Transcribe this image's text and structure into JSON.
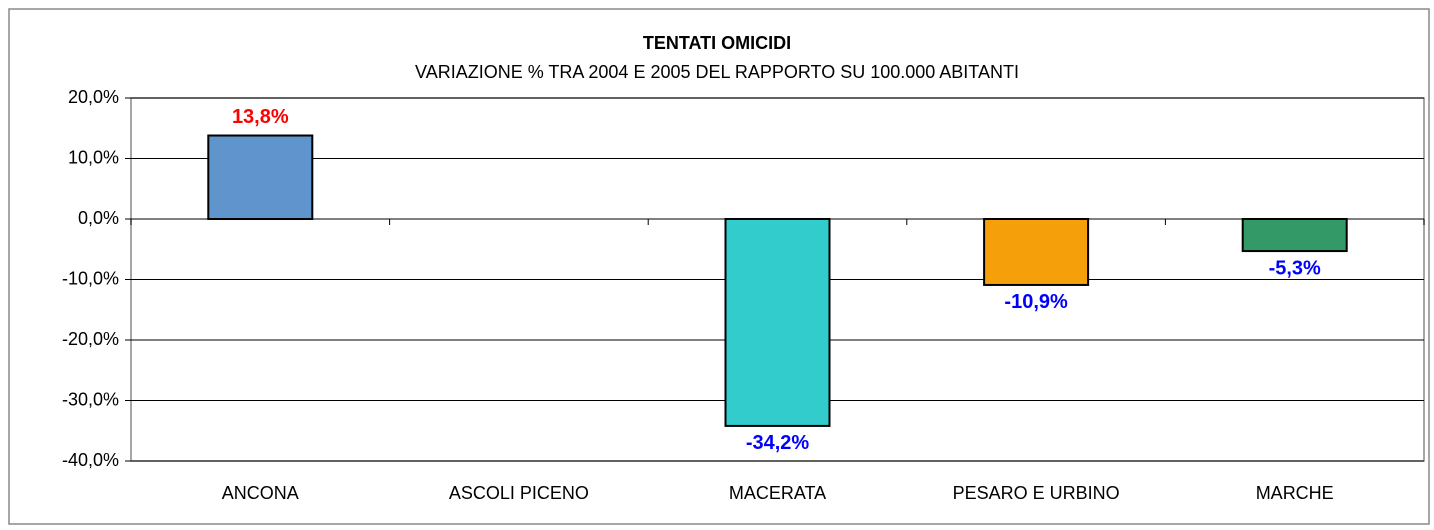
{
  "chart_data": {
    "type": "bar",
    "title": "TENTATI OMICIDI",
    "subtitle": "VARIAZIONE % TRA 2004 E 2005 DEL RAPPORTO SU 100.000 ABITANTI",
    "categories": [
      "ANCONA",
      "ASCOLI PICENO",
      "MACERATA",
      "PESARO E URBINO",
      "MARCHE"
    ],
    "values": [
      13.8,
      null,
      -34.2,
      -10.9,
      -5.3
    ],
    "value_labels": [
      "13,8%",
      null,
      "-34,2%",
      "-10,9%",
      "-5,3%"
    ],
    "colors": [
      "#5f94cc",
      null,
      "#33cccc",
      "#f5a00a",
      "#339966"
    ],
    "value_label_colors": [
      "#ff0000",
      null,
      "#0000ff",
      "#0000ff",
      "#0000ff"
    ],
    "ylim": [
      -40,
      20
    ],
    "yticks": [
      {
        "value": -40,
        "label": "-40,0%"
      },
      {
        "value": -30,
        "label": "-30,0%"
      },
      {
        "value": -20,
        "label": "-20,0%"
      },
      {
        "value": -10,
        "label": "-10,0%"
      },
      {
        "value": 0,
        "label": "0,0%"
      },
      {
        "value": 10,
        "label": "10,0%"
      },
      {
        "value": 20,
        "label": "20,0%"
      }
    ],
    "grid": true
  }
}
